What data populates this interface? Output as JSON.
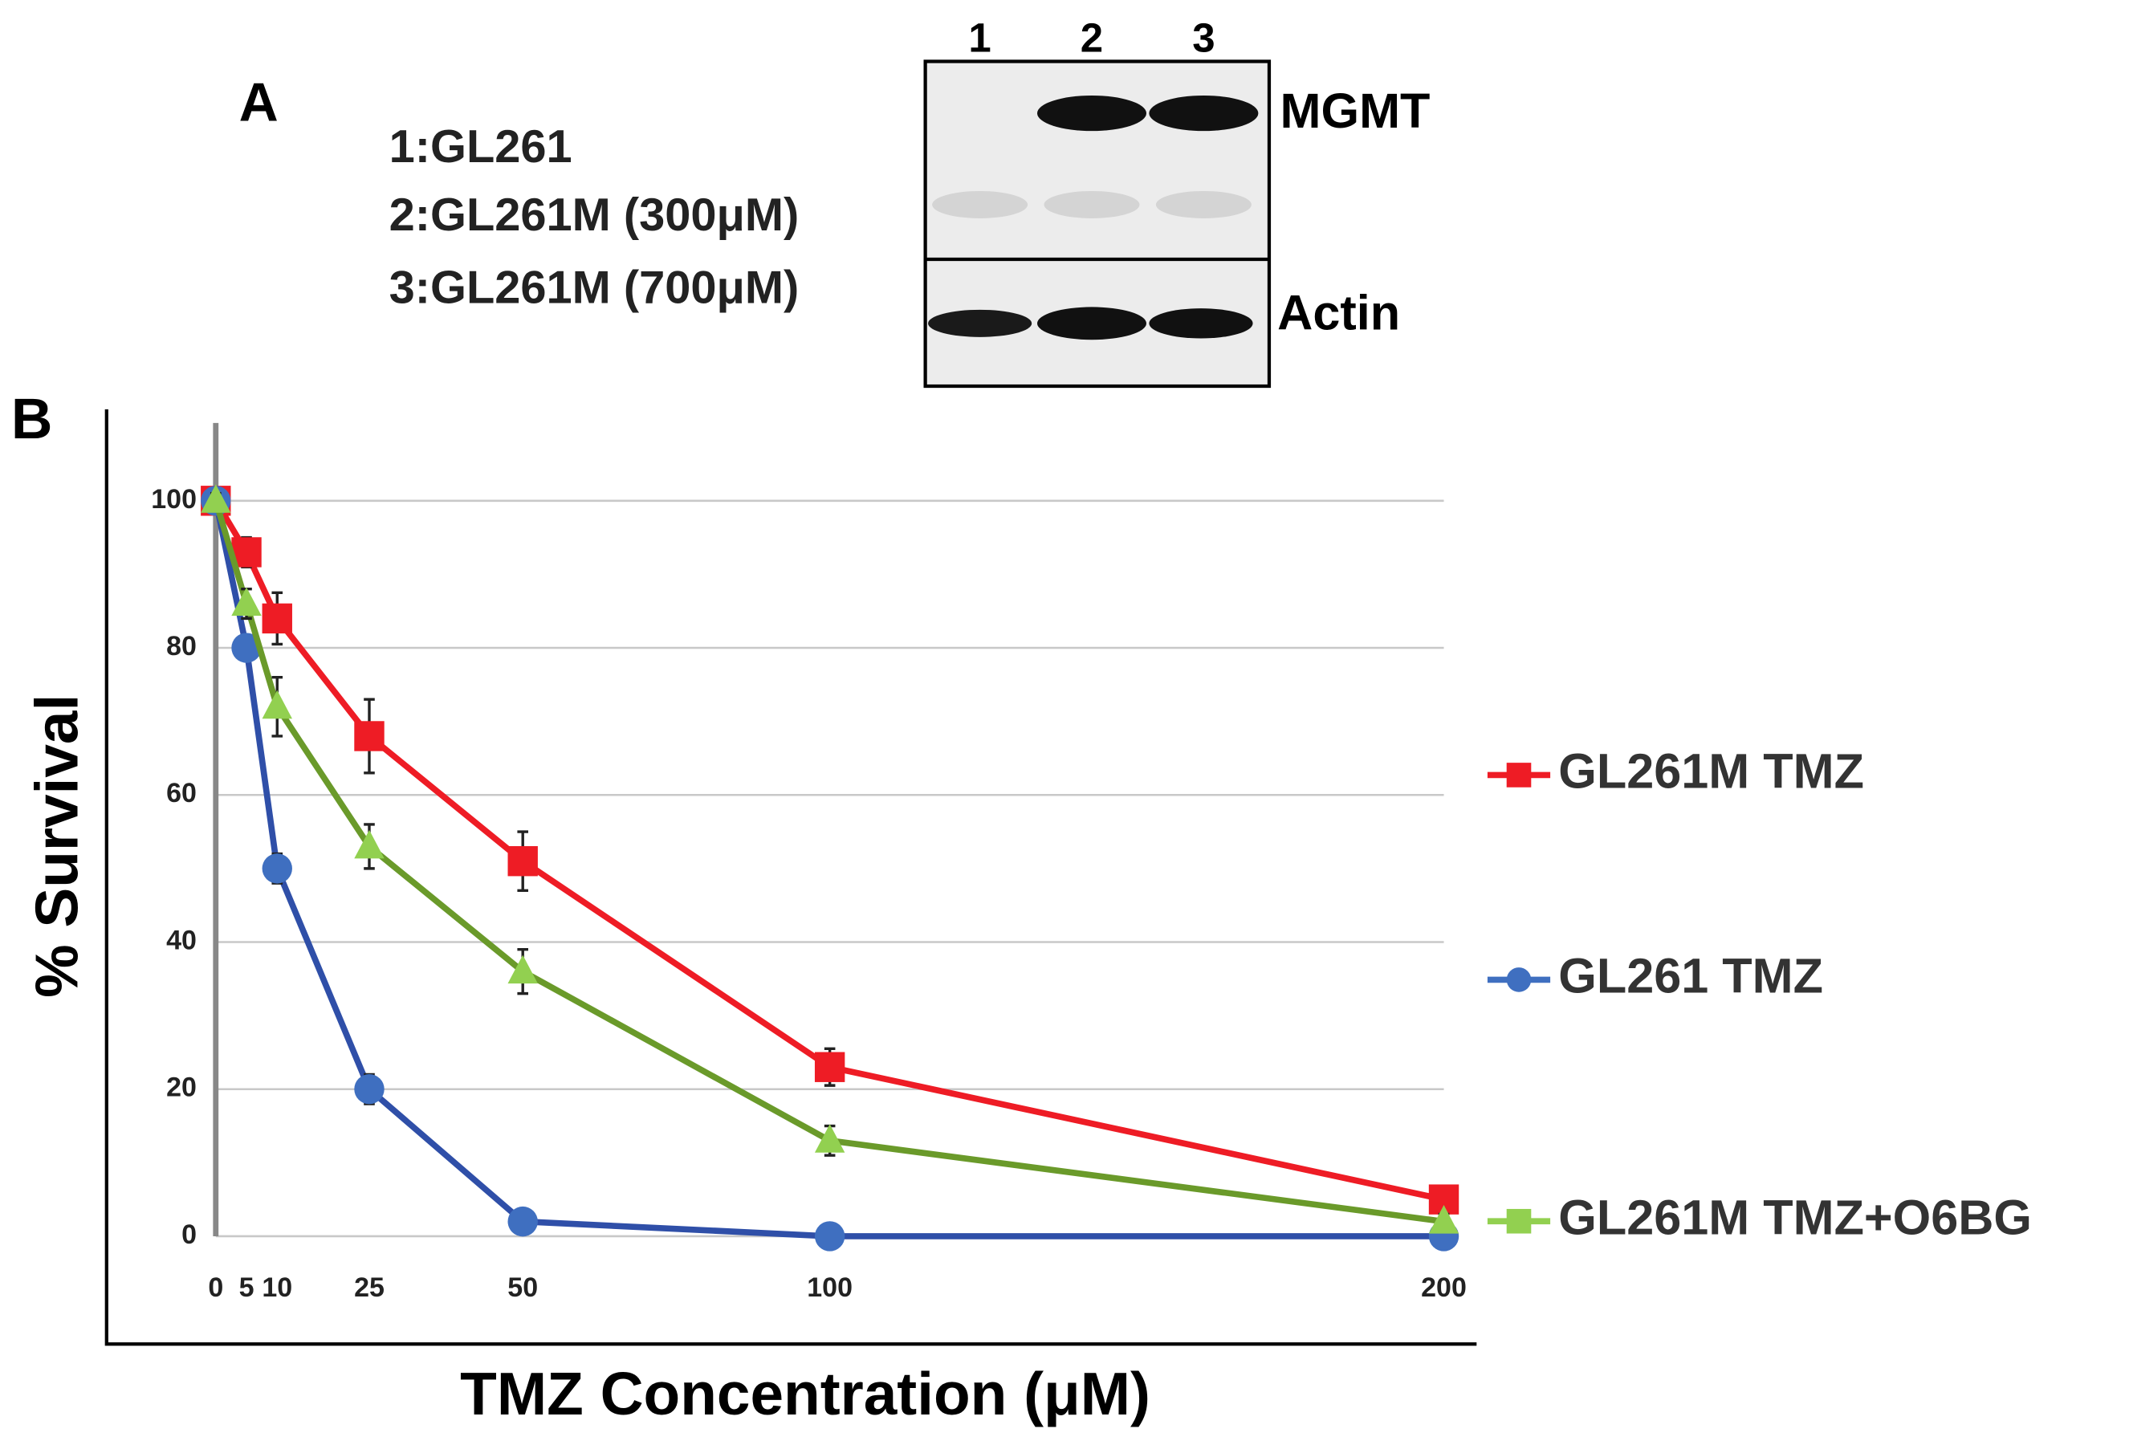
{
  "panel_a": {
    "label": "A",
    "lanes": [
      "1",
      "2",
      "3"
    ],
    "samples": [
      "1:GL261",
      "2:GL261M (300μM)",
      "3:GL261M (700μM)"
    ],
    "proteins": [
      "MGMT",
      "Actin"
    ]
  },
  "chart_data": {
    "type": "line",
    "panel_label": "B",
    "x_label": "TMZ Concentration (μM)",
    "y_label": "% Survival",
    "x": [
      0,
      5,
      10,
      25,
      50,
      100,
      200
    ],
    "xlim": [
      0,
      200
    ],
    "xticks": [
      0,
      5,
      10,
      25,
      50,
      100,
      200
    ],
    "ylim": [
      0,
      100
    ],
    "yticks": [
      0,
      20,
      40,
      60,
      80,
      100
    ],
    "grid": true,
    "series": [
      {
        "name": "GL261M TMZ",
        "color": "#ee1c25",
        "line_color": "#ee1c25",
        "marker": "square",
        "values": [
          100,
          93,
          84,
          68,
          51,
          23,
          5
        ],
        "errors": [
          1,
          2,
          3.5,
          5,
          4,
          2.5,
          1.5
        ]
      },
      {
        "name": "GL261 TMZ",
        "color": "#3f6fc0",
        "line_color": "#2f4fa8",
        "marker": "circle",
        "values": [
          100,
          80,
          50,
          20,
          2,
          0,
          0
        ],
        "errors": [
          1,
          1,
          2,
          2,
          1,
          1,
          0.5
        ]
      },
      {
        "name": "GL261M TMZ+O6BG",
        "color": "#92d050",
        "line_color": "#6a9a2a",
        "marker": "triangle",
        "values": [
          100,
          86,
          72,
          53,
          36,
          13,
          2
        ],
        "errors": [
          1,
          2,
          4,
          3,
          3,
          2,
          1
        ]
      }
    ]
  }
}
